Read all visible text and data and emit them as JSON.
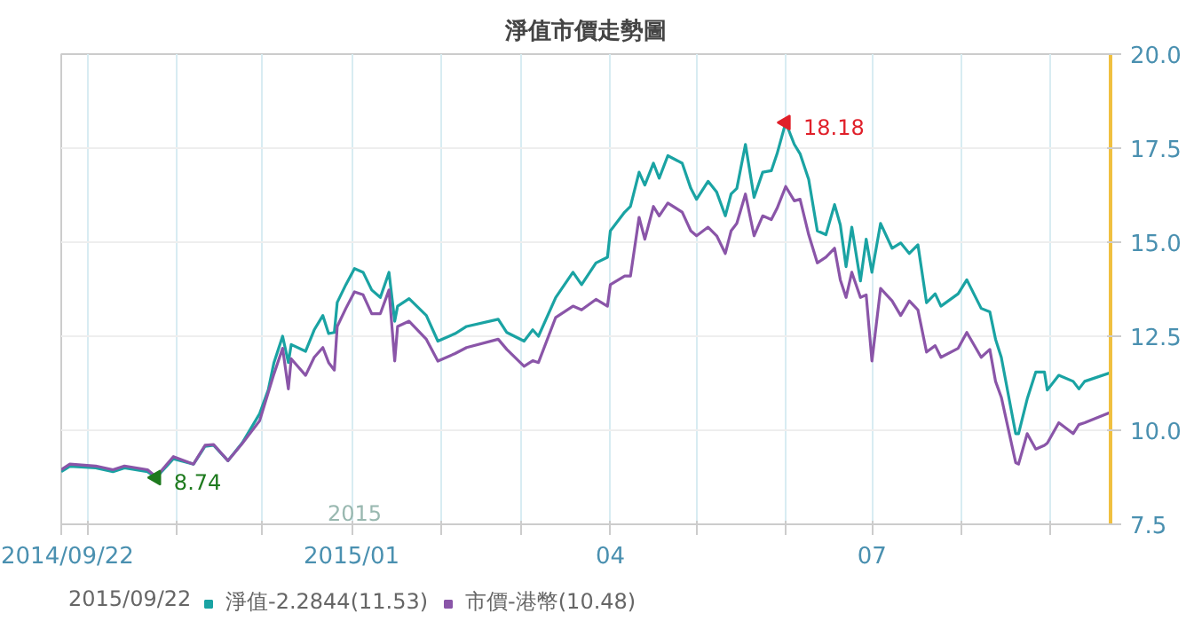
{
  "chart_data": {
    "type": "line",
    "title": "淨值市價走勢圖",
    "legend_title": "2015/09/22",
    "legend": "bottom",
    "grid": true,
    "marker": "none",
    "line_style": "solid",
    "xlim": [
      "2014-09-22",
      "2015-09-22"
    ],
    "xticks": [
      {
        "value": "2014-09-22",
        "label": "2014/09/22"
      },
      {
        "value": "2014-10-01",
        "label": null
      },
      {
        "value": "2014-11-01",
        "label": null
      },
      {
        "value": "2014-12-01",
        "label": null
      },
      {
        "value": "2015-01-01",
        "label": "2015/01"
      },
      {
        "value": "2015-02-01",
        "label": null
      },
      {
        "value": "2015-03-01",
        "label": null
      },
      {
        "value": "2015-04-01",
        "label": "04"
      },
      {
        "value": "2015-05-01",
        "label": null
      },
      {
        "value": "2015-06-01",
        "label": null
      },
      {
        "value": "2015-07-01",
        "label": "07"
      },
      {
        "value": "2015-08-01",
        "label": null
      },
      {
        "value": "2015-09-01",
        "label": null
      }
    ],
    "ylim": [
      7.5,
      20.0
    ],
    "yticks": [
      {
        "value": 7.5,
        "label": "7.5"
      },
      {
        "value": 10,
        "label": "10.0"
      },
      {
        "value": 12.5,
        "label": "12.5"
      },
      {
        "value": 15,
        "label": "15.0"
      },
      {
        "value": 17.5,
        "label": "17.5"
      },
      {
        "value": 20,
        "label": "20.0"
      }
    ],
    "x": [
      "2014-09-22",
      "2014-09-25",
      "2014-10-04",
      "2014-10-10",
      "2014-10-14",
      "2014-10-22",
      "2014-10-25",
      "2014-10-31",
      "2014-11-07",
      "2014-11-11",
      "2014-11-14",
      "2014-11-19",
      "2014-11-24",
      "2014-11-30",
      "2014-12-03",
      "2014-12-05",
      "2014-12-08",
      "2014-12-10",
      "2014-12-11",
      "2014-12-16",
      "2014-12-19",
      "2014-12-22",
      "2014-12-24",
      "2014-12-26",
      "2014-12-27",
      "2014-12-30",
      "2015-01-02",
      "2015-01-05",
      "2015-01-08",
      "2015-01-11",
      "2015-01-14",
      "2015-01-16",
      "2015-01-17",
      "2015-01-21",
      "2015-01-27",
      "2015-01-31",
      "2015-02-06",
      "2015-02-10",
      "2015-02-21",
      "2015-02-24",
      "2015-03-02",
      "2015-03-05",
      "2015-03-07",
      "2015-03-13",
      "2015-03-19",
      "2015-03-22",
      "2015-03-27",
      "2015-03-31",
      "2015-04-01",
      "2015-04-06",
      "2015-04-08",
      "2015-04-11",
      "2015-04-13",
      "2015-04-16",
      "2015-04-18",
      "2015-04-21",
      "2015-04-26",
      "2015-04-29",
      "2015-05-01",
      "2015-05-05",
      "2015-05-08",
      "2015-05-11",
      "2015-05-13",
      "2015-05-15",
      "2015-05-18",
      "2015-05-21",
      "2015-05-24",
      "2015-05-27",
      "2015-05-29",
      "2015-06-01",
      "2015-06-04",
      "2015-06-06",
      "2015-06-09",
      "2015-06-12",
      "2015-06-15",
      "2015-06-18",
      "2015-06-20",
      "2015-06-22",
      "2015-06-24",
      "2015-06-27",
      "2015-06-29",
      "2015-07-01",
      "2015-07-04",
      "2015-07-08",
      "2015-07-11",
      "2015-07-14",
      "2015-07-17",
      "2015-07-20",
      "2015-07-23",
      "2015-07-25",
      "2015-07-31",
      "2015-08-03",
      "2015-08-08",
      "2015-08-11",
      "2015-08-13",
      "2015-08-15",
      "2015-08-20",
      "2015-08-21",
      "2015-08-24",
      "2015-08-27",
      "2015-08-30",
      "2015-08-31",
      "2015-09-04",
      "2015-09-09",
      "2015-09-11",
      "2015-09-13",
      "2015-09-22"
    ],
    "series": [
      {
        "name": "淨值-2.2844(11.53)",
        "color": "#1aa3a3",
        "values": [
          8.9,
          9.04,
          9.0,
          8.9,
          9.0,
          8.9,
          8.74,
          9.24,
          9.1,
          9.57,
          9.6,
          9.19,
          9.67,
          10.44,
          11.07,
          11.8,
          12.5,
          11.8,
          12.28,
          12.1,
          12.67,
          13.05,
          12.57,
          12.6,
          13.4,
          13.87,
          14.3,
          14.2,
          13.73,
          13.53,
          14.2,
          12.9,
          13.3,
          13.5,
          13.05,
          12.37,
          12.57,
          12.76,
          12.95,
          12.6,
          12.37,
          12.67,
          12.5,
          13.53,
          14.2,
          13.87,
          14.45,
          14.6,
          15.3,
          15.8,
          15.95,
          16.86,
          16.52,
          17.1,
          16.7,
          17.3,
          17.1,
          16.43,
          16.14,
          16.62,
          16.33,
          15.7,
          16.28,
          16.43,
          17.6,
          16.19,
          16.86,
          16.9,
          17.35,
          18.18,
          17.6,
          17.35,
          16.67,
          15.3,
          15.2,
          16.0,
          15.46,
          14.35,
          15.4,
          13.97,
          15.08,
          14.2,
          15.5,
          14.84,
          14.98,
          14.7,
          14.93,
          13.39,
          13.63,
          13.3,
          13.63,
          14.0,
          13.24,
          13.15,
          12.42,
          11.94,
          9.91,
          9.91,
          10.83,
          11.55,
          11.55,
          11.07,
          11.46,
          11.3,
          11.1,
          11.3,
          11.53
        ]
      },
      {
        "name": "市價-港幣(10.48)",
        "color": "#8a55a8",
        "values": [
          8.95,
          9.1,
          9.05,
          8.95,
          9.05,
          8.95,
          8.76,
          9.3,
          9.1,
          9.6,
          9.62,
          9.19,
          9.65,
          10.25,
          11.0,
          11.5,
          12.18,
          11.1,
          11.9,
          11.46,
          11.94,
          12.2,
          11.8,
          11.6,
          12.76,
          13.24,
          13.68,
          13.6,
          13.1,
          13.1,
          13.73,
          11.84,
          12.76,
          12.9,
          12.42,
          11.84,
          12.04,
          12.2,
          12.42,
          12.15,
          11.7,
          11.85,
          11.8,
          13.0,
          13.3,
          13.2,
          13.48,
          13.3,
          13.87,
          14.1,
          14.1,
          15.66,
          15.08,
          15.95,
          15.7,
          16.04,
          15.8,
          15.3,
          15.17,
          15.4,
          15.17,
          14.7,
          15.3,
          15.5,
          16.28,
          15.17,
          15.7,
          15.6,
          15.9,
          16.48,
          16.1,
          16.14,
          15.2,
          14.45,
          14.6,
          14.84,
          14.0,
          13.53,
          14.2,
          13.53,
          13.6,
          11.84,
          13.77,
          13.44,
          13.05,
          13.44,
          13.2,
          12.08,
          12.25,
          11.94,
          12.18,
          12.6,
          11.94,
          12.15,
          11.3,
          10.88,
          9.14,
          9.1,
          9.91,
          9.5,
          9.6,
          9.66,
          10.2,
          9.91,
          10.15,
          10.2,
          10.48
        ]
      }
    ],
    "annotations": [
      {
        "text": "8.74",
        "x": "2014-10-25",
        "y": 8.74
      },
      {
        "text": "18.18",
        "x": "2015-06-01",
        "y": 18.18
      },
      "2015"
    ]
  }
}
